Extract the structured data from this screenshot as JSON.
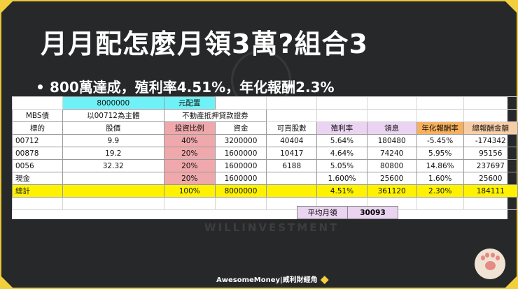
{
  "slide": {
    "title": "月月配怎麼月領3萬?組合3",
    "subtitle": "800萬達成，殖利率4.51%，年化報酬2.3%",
    "watermark": "WILLINVESTMENT",
    "footer": "AwesomeMoney|威利財經角"
  },
  "sheet": {
    "top_row": {
      "amount": "8000000",
      "amount_label": "元配置"
    },
    "group_row": {
      "label1": "MBS債",
      "label2": "以00712為主體",
      "label3": "不動產抵押貸款證券"
    },
    "columns": [
      "標的",
      "股價",
      "投資比例",
      "資金",
      "可買股數",
      "殖利率",
      "領息",
      "年化報酬率",
      "總報酬金額"
    ],
    "rows": [
      {
        "ticker": "00712",
        "price": "9.9",
        "ratio": "40%",
        "capital": "3200000",
        "shares": "40404",
        "yield": "5.64%",
        "dividend": "180480",
        "annual_return": "-5.45%",
        "total_return": "-174342"
      },
      {
        "ticker": "00878",
        "price": "19.2",
        "ratio": "20%",
        "capital": "1600000",
        "shares": "10417",
        "yield": "4.64%",
        "dividend": "74240",
        "annual_return": "5.95%",
        "total_return": "95156"
      },
      {
        "ticker": "0056",
        "price": "32.32",
        "ratio": "20%",
        "capital": "1600000",
        "shares": "6188",
        "yield": "5.05%",
        "dividend": "80800",
        "annual_return": "14.86%",
        "total_return": "237697"
      },
      {
        "ticker": "現金",
        "price": "",
        "ratio": "20%",
        "capital": "1600000",
        "shares": "",
        "yield": "1.600%",
        "dividend": "25600",
        "annual_return": "1.60%",
        "total_return": "25600"
      }
    ],
    "total": {
      "label": "總計",
      "ratio": "100%",
      "capital": "8000000",
      "yield": "4.51%",
      "dividend": "361120",
      "annual_return": "2.30%",
      "total_return": "184111"
    },
    "avg_monthly": {
      "label": "平均月領",
      "value": "30093"
    }
  },
  "colors": {
    "frame": "#e9c43a",
    "header_cyan": "#6ff2f7",
    "ratio_pink": "#efa8ab",
    "total_yellow": "#fff200",
    "return_orange": "#f7b05d",
    "total_return_peach": "#f7cda6",
    "col_lilac": "#ead4f1"
  },
  "icons": [
    "paw-icon",
    "diamond-icon"
  ]
}
